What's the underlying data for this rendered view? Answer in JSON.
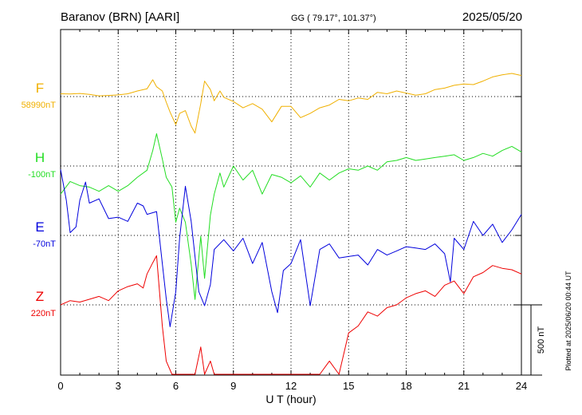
{
  "header": {
    "station": "Baranov (BRN)  [AARI]",
    "coords": "GG ( 79.17°, 101.37°)",
    "date": "2025/05/20"
  },
  "footer": {
    "plotted": "Plotted at 2025/06/20 00:44 UT"
  },
  "chart_data": {
    "type": "line",
    "xlabel": "U T (hour)",
    "xlim": [
      0,
      24
    ],
    "x_ticks": [
      "0",
      "3",
      "6",
      "9",
      "12",
      "15",
      "18",
      "21",
      "24"
    ],
    "scale_bar": {
      "label": "500 nT",
      "value_nT": 500
    },
    "colors": {
      "F": "#f0b000",
      "H": "#22dd22",
      "E": "#0000dd",
      "Z": "#ee0000"
    },
    "series": [
      {
        "name": "F",
        "baseline_label": "58990nT",
        "baseline_nT": 58990,
        "x": [
          0,
          0.5,
          1,
          1.5,
          2,
          2.5,
          3,
          3.5,
          4,
          4.5,
          4.8,
          5,
          5.3,
          5.5,
          5.7,
          6,
          6.2,
          6.5,
          6.8,
          7,
          7.3,
          7.5,
          7.8,
          8,
          8.3,
          8.5,
          9,
          9.5,
          10,
          10.5,
          11,
          11.5,
          12,
          12.5,
          13,
          13.5,
          14,
          14.5,
          15,
          15.5,
          16,
          16.5,
          17,
          17.5,
          18,
          18.5,
          19,
          19.5,
          20,
          20.5,
          21,
          21.5,
          22,
          22.5,
          23,
          23.5,
          24
        ],
        "y": [
          20,
          18,
          22,
          16,
          5,
          8,
          12,
          20,
          40,
          55,
          120,
          70,
          40,
          -40,
          -110,
          -200,
          -120,
          -100,
          -210,
          -260,
          -50,
          110,
          50,
          -30,
          40,
          -5,
          -35,
          -80,
          -50,
          -90,
          -180,
          -70,
          -70,
          -150,
          -120,
          -80,
          -60,
          -20,
          -30,
          -10,
          -20,
          30,
          20,
          40,
          25,
          10,
          20,
          50,
          60,
          80,
          90,
          85,
          110,
          140,
          155,
          165,
          150
        ]
      },
      {
        "name": "H",
        "baseline_label": "-100nT",
        "baseline_nT": -100,
        "x": [
          0,
          0.5,
          1,
          1.5,
          2,
          2.5,
          3,
          3.5,
          4,
          4.5,
          4.8,
          5,
          5.3,
          5.5,
          5.8,
          6,
          6.2,
          6.5,
          6.8,
          7,
          7.3,
          7.5,
          7.8,
          8,
          8.3,
          8.5,
          9,
          9.5,
          10,
          10.5,
          11,
          11.5,
          12,
          12.5,
          13,
          13.5,
          14,
          14.5,
          15,
          15.5,
          16,
          16.5,
          17,
          17.5,
          18,
          18.5,
          19,
          19.5,
          20,
          20.5,
          21,
          21.5,
          22,
          22.5,
          23,
          23.5,
          24
        ],
        "y": [
          -200,
          -110,
          -140,
          -150,
          -180,
          -140,
          -180,
          -140,
          -80,
          -30,
          110,
          230,
          50,
          -80,
          -150,
          -400,
          -300,
          -400,
          -700,
          -950,
          -500,
          -800,
          -350,
          -200,
          -50,
          -150,
          0,
          -100,
          -30,
          -200,
          -60,
          -80,
          -120,
          -70,
          -150,
          -50,
          -100,
          -50,
          -20,
          -30,
          0,
          -30,
          30,
          40,
          60,
          40,
          50,
          60,
          70,
          80,
          40,
          60,
          90,
          70,
          110,
          140,
          100
        ]
      },
      {
        "name": "E",
        "baseline_label": "-70nT",
        "baseline_nT": -70,
        "x": [
          0,
          0.3,
          0.5,
          0.8,
          1,
          1.3,
          1.5,
          2,
          2.5,
          3,
          3.5,
          4,
          4.3,
          4.5,
          5,
          5.3,
          5.5,
          5.7,
          6,
          6.2,
          6.5,
          6.8,
          7,
          7.2,
          7.5,
          7.8,
          8,
          8.5,
          9,
          9.5,
          10,
          10.5,
          11,
          11.3,
          11.6,
          12,
          12.5,
          13,
          13.5,
          14,
          14.5,
          15,
          15.5,
          16,
          16.5,
          17,
          17.5,
          18,
          18.5,
          19,
          19.5,
          20,
          20.3,
          20.5,
          21,
          21.5,
          22,
          22.5,
          23,
          23.5,
          24
        ],
        "y": [
          470,
          250,
          20,
          60,
          250,
          380,
          230,
          260,
          120,
          130,
          100,
          230,
          210,
          150,
          170,
          -200,
          -450,
          -650,
          -400,
          -20,
          350,
          100,
          -150,
          -400,
          -500,
          -350,
          -100,
          -30,
          -110,
          -20,
          -200,
          -50,
          -400,
          -550,
          -250,
          -200,
          -30,
          -500,
          -100,
          -60,
          -160,
          -150,
          -140,
          -210,
          -100,
          -140,
          -110,
          -80,
          -90,
          -100,
          -60,
          -130,
          -330,
          -20,
          -100,
          100,
          0,
          80,
          -50,
          40,
          150
        ]
      },
      {
        "name": "Z",
        "baseline_label": "220nT",
        "baseline_nT": 220,
        "x": [
          0,
          0.5,
          1,
          1.5,
          2,
          2.5,
          3,
          3.5,
          4,
          4.3,
          4.5,
          4.8,
          5,
          5.3,
          5.5,
          5.8,
          6,
          6.3,
          6.5,
          6.8,
          7,
          7.3,
          7.5,
          7.8,
          8,
          8.5,
          9,
          9.5,
          10,
          10.5,
          11,
          11.5,
          12,
          12.5,
          13,
          13.5,
          14,
          14.5,
          15,
          15.5,
          16,
          16.5,
          17,
          17.5,
          18,
          18.5,
          19,
          19.5,
          20,
          20.5,
          21,
          21.5,
          22,
          22.5,
          23,
          23.5,
          24
        ],
        "y": [
          0,
          30,
          20,
          40,
          60,
          30,
          100,
          130,
          150,
          120,
          220,
          300,
          350,
          -150,
          -400,
          -600,
          -750,
          -900,
          -600,
          -1050,
          -700,
          -300,
          -800,
          -400,
          -700,
          -600,
          -800,
          -700,
          -950,
          -900,
          -1000,
          -900,
          -700,
          -700,
          -800,
          -600,
          -400,
          -500,
          -200,
          -150,
          -50,
          -80,
          -20,
          0,
          50,
          80,
          100,
          60,
          140,
          170,
          80,
          200,
          230,
          280,
          260,
          250,
          220
        ]
      }
    ]
  }
}
